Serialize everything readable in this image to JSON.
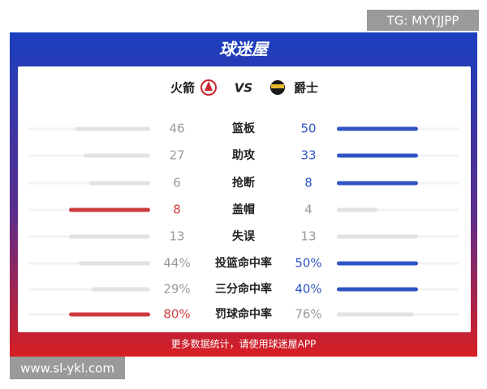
{
  "watermark": "TG: MYYJJPP",
  "site": "www.sl-ykl.com",
  "brand": "球迷屋",
  "header": {
    "home": "火箭",
    "vs": "VS",
    "away": "爵士"
  },
  "stats": [
    {
      "name": "篮板",
      "home": 46,
      "away": 50
    },
    {
      "name": "助攻",
      "home": 27,
      "away": 33
    },
    {
      "name": "抢断",
      "home": 6,
      "away": 8
    },
    {
      "name": "盖帽",
      "home": 8,
      "away": 4
    },
    {
      "name": "失误",
      "home": 13,
      "away": 13
    },
    {
      "name": "投篮命中率",
      "home": 44,
      "home_label": "44%",
      "away": 50,
      "away_label": "50%"
    },
    {
      "name": "三分命中率",
      "home": 29,
      "home_label": "29%",
      "away": 40,
      "away_label": "40%"
    },
    {
      "name": "罚球命中率",
      "home": 80,
      "home_label": "80%",
      "away": 76,
      "away_label": "76%"
    }
  ],
  "footer": "更多数据统计，请使用球迷屋APP"
}
